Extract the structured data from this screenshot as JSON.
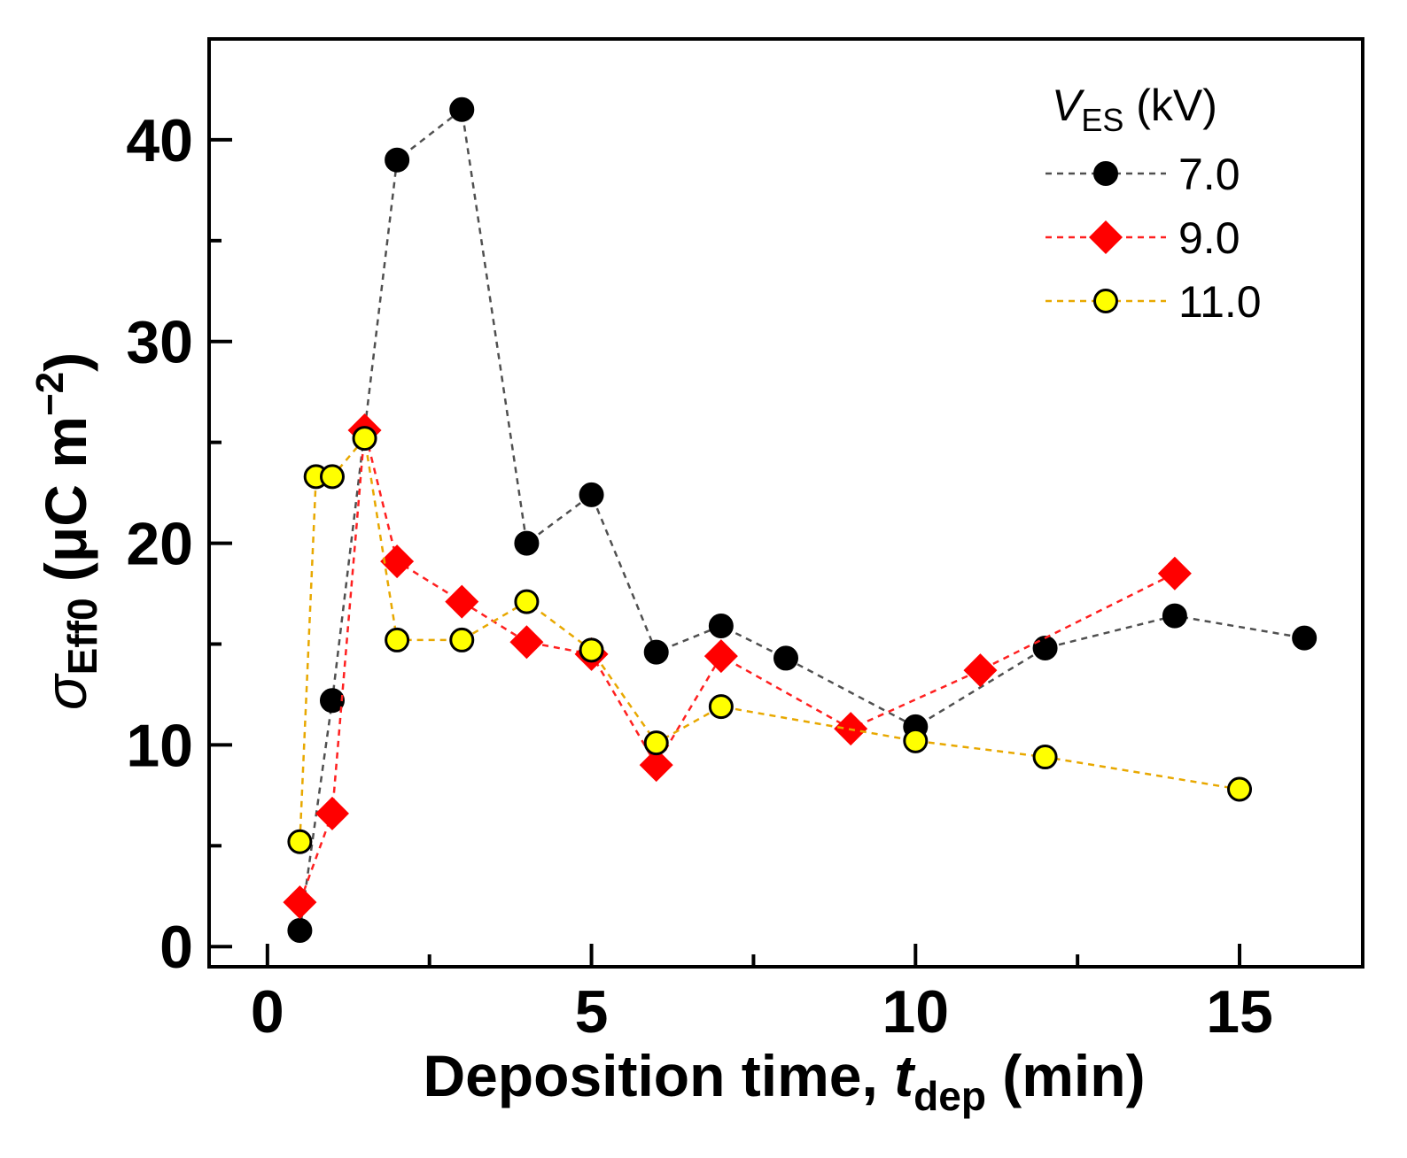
{
  "chart_data": {
    "type": "line",
    "xlabel": {
      "main": "Deposition time, ",
      "var": "t",
      "sub": "dep",
      "unit": " (min)"
    },
    "ylabel": {
      "var": "σ",
      "sub": "Eff0",
      "unit": " (μC m",
      "exp": "−2",
      "close": ")"
    },
    "xlim": [
      -0.9,
      16.9
    ],
    "ylim": [
      -1.0,
      45.0
    ],
    "x_ticks": [
      0,
      5,
      10,
      15
    ],
    "x_tick_labels": [
      "0",
      "5",
      "10",
      "15"
    ],
    "x_minor_ticks": [
      2.5,
      7.5,
      12.5
    ],
    "y_ticks": [
      0,
      10,
      20,
      30,
      40
    ],
    "y_tick_labels": [
      "0",
      "10",
      "20",
      "30",
      "40"
    ],
    "y_minor_ticks": [
      5,
      15,
      25,
      35
    ],
    "legend": {
      "title_var": "V",
      "title_sub": "ES",
      "title_unit": " (kV)",
      "position": "top-right"
    },
    "series": [
      {
        "name": "7.0",
        "color": "#505050",
        "marker": "circle",
        "fill": "#000000",
        "x": [
          0.5,
          1,
          2,
          3,
          4,
          5,
          6,
          7,
          8,
          10,
          12,
          14,
          16
        ],
        "y": [
          0.8,
          12.2,
          39,
          41.5,
          20,
          22.4,
          14.6,
          15.9,
          14.3,
          10.9,
          14.8,
          16.4,
          15.3
        ]
      },
      {
        "name": "9.0",
        "color": "#ff2020",
        "marker": "diamond",
        "fill": "#ff0000",
        "x": [
          0.5,
          1,
          1.5,
          2,
          3,
          4,
          5,
          6,
          7,
          9,
          11,
          14
        ],
        "y": [
          2.2,
          6.6,
          25.6,
          19.1,
          17.1,
          15.1,
          14.5,
          9.0,
          14.4,
          10.8,
          13.7,
          18.5
        ]
      },
      {
        "name": "11.0",
        "color": "#e8a800",
        "marker": "circle",
        "fill": "#ffff00",
        "x": [
          0.5,
          0.75,
          1,
          1.5,
          2,
          3,
          4,
          5,
          6,
          7,
          10,
          12,
          15
        ],
        "y": [
          5.2,
          23.3,
          23.3,
          25.2,
          15.2,
          15.2,
          17.1,
          14.7,
          10.1,
          11.9,
          10.2,
          9.4,
          7.8
        ]
      }
    ]
  }
}
